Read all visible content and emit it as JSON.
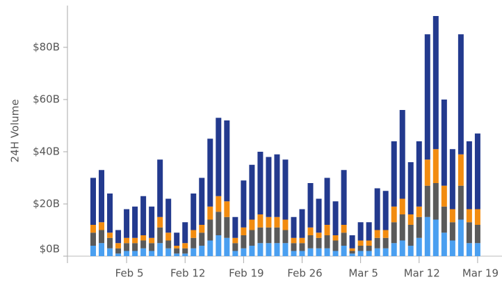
{
  "chart_data": {
    "type": "stacked_bar",
    "y_label": "24H Volume",
    "categories": [
      null,
      null,
      null,
      null,
      "Feb 5",
      null,
      null,
      null,
      null,
      null,
      null,
      "Feb 12",
      null,
      null,
      null,
      null,
      null,
      null,
      "Feb 19",
      null,
      null,
      null,
      null,
      null,
      null,
      "Feb 26",
      null,
      null,
      null,
      null,
      null,
      null,
      "Mar 5",
      null,
      null,
      null,
      null,
      null,
      null,
      "Mar 12",
      null,
      null,
      null,
      null,
      null,
      null,
      "Mar 19"
    ],
    "series": [
      {
        "name": "Blue",
        "color": "#4a9ff0",
        "values": [
          4,
          5,
          3,
          1,
          2,
          2,
          3,
          2,
          5,
          3,
          1,
          1,
          3,
          4,
          6,
          8,
          7,
          2,
          3,
          4,
          5,
          5,
          5,
          5,
          2,
          2,
          3,
          3,
          3,
          2,
          4,
          1,
          2,
          2,
          3,
          3,
          5,
          6,
          4,
          7,
          15,
          14,
          9,
          6,
          14,
          5,
          5
        ]
      },
      {
        "name": "Gray",
        "color": "#5a5a5a",
        "values": [
          5,
          5,
          4,
          2,
          3,
          3,
          3,
          3,
          6,
          3,
          2,
          2,
          4,
          5,
          8,
          9,
          8,
          3,
          5,
          6,
          6,
          6,
          6,
          5,
          3,
          3,
          5,
          4,
          5,
          4,
          5,
          1,
          2,
          2,
          4,
          4,
          8,
          10,
          8,
          8,
          12,
          14,
          10,
          7,
          13,
          8,
          7
        ]
      },
      {
        "name": "Orange",
        "color": "#f28c10",
        "values": [
          3,
          3,
          2,
          2,
          2,
          2,
          2,
          2,
          4,
          3,
          1,
          2,
          3,
          3,
          5,
          6,
          6,
          2,
          3,
          4,
          5,
          4,
          4,
          4,
          2,
          2,
          3,
          2,
          4,
          2,
          3,
          1,
          2,
          2,
          3,
          3,
          6,
          6,
          4,
          4,
          10,
          13,
          8,
          5,
          12,
          5,
          6
        ]
      },
      {
        "name": "Navy",
        "color": "#233a8e",
        "values": [
          18,
          20,
          15,
          5,
          11,
          12,
          15,
          12,
          22,
          13,
          5,
          8,
          14,
          18,
          26,
          30,
          31,
          8,
          18,
          21,
          24,
          23,
          24,
          23,
          8,
          11,
          17,
          13,
          18,
          13,
          21,
          5,
          7,
          7,
          16,
          15,
          25,
          34,
          20,
          25,
          48,
          51,
          33,
          23,
          46,
          26,
          29
        ]
      }
    ],
    "ylim": [
      0,
      96
    ],
    "yticks": [
      {
        "value": 0,
        "label": "$0B"
      },
      {
        "value": 20,
        "label": "$20B"
      },
      {
        "value": 40,
        "label": "$40B"
      },
      {
        "value": 60,
        "label": "$60B"
      },
      {
        "value": 80,
        "label": "$80B"
      }
    ]
  }
}
